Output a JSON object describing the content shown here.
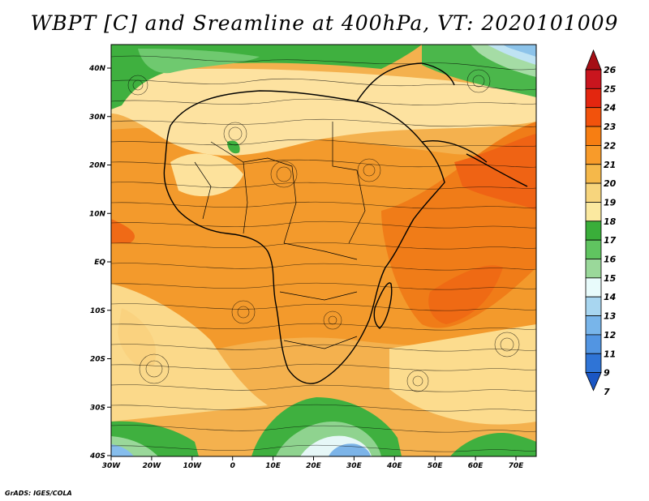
{
  "title": "WBPT [C] and Sreamline at 400hPa, VT: 2020101009",
  "credit": "GrADS: IGES/COLA",
  "map": {
    "lon_range": [
      -30,
      75
    ],
    "lat_range": [
      -40,
      45
    ],
    "lat_ticks": [
      "40N",
      "30N",
      "20N",
      "10N",
      "EQ",
      "10S",
      "20S",
      "30S",
      "40S"
    ],
    "lon_ticks": [
      "30W",
      "20W",
      "10W",
      "0",
      "10E",
      "20E",
      "30E",
      "40E",
      "50E",
      "60E",
      "70E"
    ]
  },
  "colorbar": {
    "levels": [
      "26",
      "25",
      "24",
      "23",
      "22",
      "21",
      "20",
      "19",
      "18",
      "17",
      "16",
      "15",
      "14",
      "13",
      "12",
      "11",
      "9",
      "7"
    ],
    "colors": [
      "#a50f15",
      "#c9151e",
      "#e3260f",
      "#f2520c",
      "#f77e12",
      "#f89b2a",
      "#f5b84a",
      "#f7d57d",
      "#fbe9a0",
      "#3aae3a",
      "#60c460",
      "#9ad89a",
      "#e8fbfb",
      "#a8d6f0",
      "#78b5ea",
      "#5295e2",
      "#2f74d6",
      "#1a56c4"
    ]
  }
}
